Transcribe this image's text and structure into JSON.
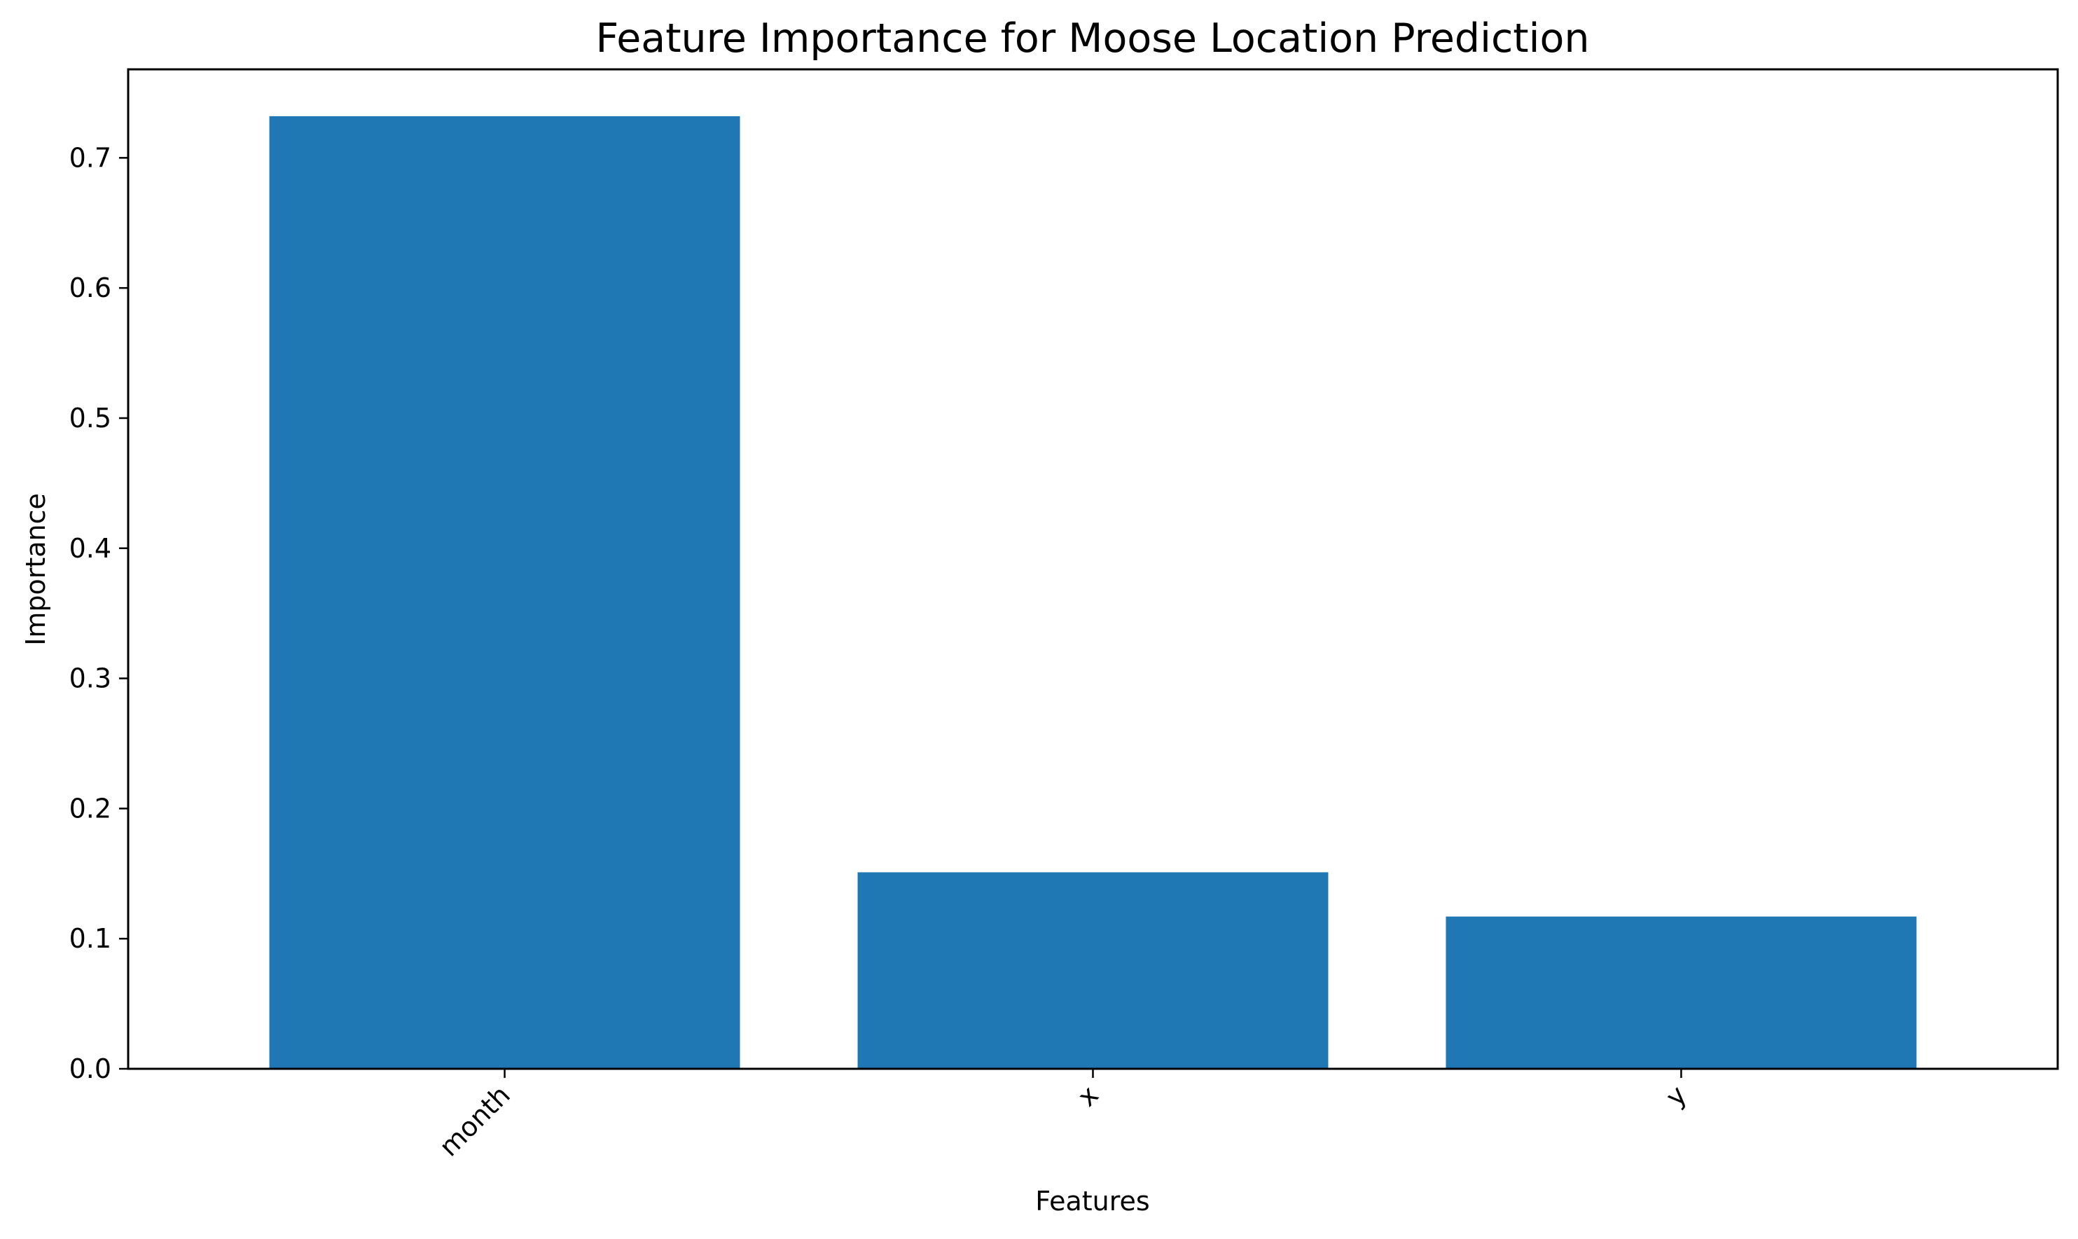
{
  "chart_data": {
    "type": "bar",
    "title": "Feature Importance for Moose Location Prediction",
    "xlabel": "Features",
    "ylabel": "Importance",
    "categories": [
      "month",
      "x",
      "y"
    ],
    "values": [
      0.732,
      0.151,
      0.117
    ],
    "ylim": [
      0,
      0.768
    ],
    "yticks": [
      "0.0",
      "0.1",
      "0.2",
      "0.3",
      "0.4",
      "0.5",
      "0.6",
      "0.7"
    ],
    "ytick_values": [
      0.0,
      0.1,
      0.2,
      0.3,
      0.4,
      0.5,
      0.6,
      0.7
    ],
    "bar_color": "#1f77b4",
    "grid": false,
    "legend": "none",
    "xtick_rotation_deg": 45
  }
}
